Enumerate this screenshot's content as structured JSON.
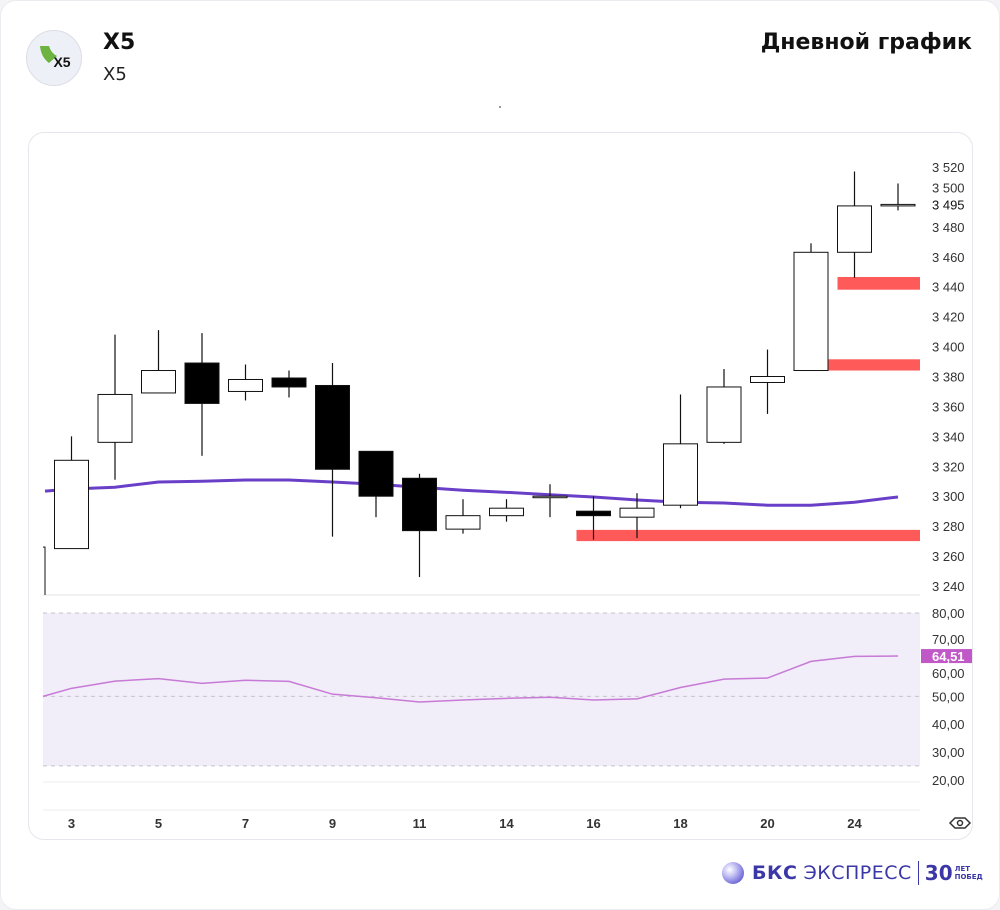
{
  "header": {
    "ticker": "X5",
    "name": "X5",
    "chart_title": "Дневной график",
    "logo_text": "X5"
  },
  "footer": {
    "brand_bold": "БКС",
    "brand_rest": "ЭКСПРЕСС",
    "anniv_num": "30",
    "anniv_line1": "ЛЕТ",
    "anniv_line2": "ПОБЕД"
  },
  "colors": {
    "ma": "#6a3fc8",
    "zone": "#ff5a5a",
    "rsi": "#c77ad6",
    "rsi_label": "#c158c8",
    "rsi_band": "#f1edf9"
  },
  "chart_data": [
    {
      "type": "candlestick",
      "x": [
        "2",
        "3",
        "4",
        "5",
        "6",
        "7",
        "8",
        "9",
        "10",
        "11",
        "13",
        "14",
        "15",
        "16",
        "17",
        "18",
        "19",
        "20",
        "23",
        "24",
        "25"
      ],
      "x_tick_labels": [
        "3",
        "5",
        "7",
        "9",
        "11",
        "14",
        "16",
        "18",
        "20",
        "24"
      ],
      "candles": [
        {
          "o": 3230,
          "h": 3266,
          "l": 3230,
          "c": 3266
        },
        {
          "o": 3265,
          "h": 3340,
          "l": 3265,
          "c": 3324
        },
        {
          "o": 3336,
          "h": 3408,
          "l": 3311,
          "c": 3368
        },
        {
          "o": 3369,
          "h": 3411,
          "l": 3369,
          "c": 3384
        },
        {
          "o": 3389,
          "h": 3409,
          "l": 3327,
          "c": 3362
        },
        {
          "o": 3370,
          "h": 3388,
          "l": 3364,
          "c": 3378
        },
        {
          "o": 3379,
          "h": 3384,
          "l": 3366,
          "c": 3373
        },
        {
          "o": 3374,
          "h": 3389,
          "l": 3273,
          "c": 3318
        },
        {
          "o": 3330,
          "h": 3330,
          "l": 3286,
          "c": 3300
        },
        {
          "o": 3312,
          "h": 3315,
          "l": 3246,
          "c": 3277
        },
        {
          "o": 3278,
          "h": 3298,
          "l": 3275,
          "c": 3287
        },
        {
          "o": 3287,
          "h": 3298,
          "l": 3283,
          "c": 3292
        },
        {
          "o": 3299,
          "h": 3308,
          "l": 3286,
          "c": 3300
        },
        {
          "o": 3290,
          "h": 3300,
          "l": 3271,
          "c": 3287
        },
        {
          "o": 3286,
          "h": 3302,
          "l": 3272,
          "c": 3292
        },
        {
          "o": 3294,
          "h": 3368,
          "l": 3292,
          "c": 3335
        },
        {
          "o": 3336,
          "h": 3385,
          "l": 3335,
          "c": 3373
        },
        {
          "o": 3376,
          "h": 3398,
          "l": 3355,
          "c": 3380
        },
        {
          "o": 3384,
          "h": 3469,
          "l": 3384,
          "c": 3463
        },
        {
          "o": 3463,
          "h": 3517,
          "l": 3446,
          "c": 3494
        },
        {
          "o": 3495,
          "h": 3509,
          "l": 3491,
          "c": 3495
        }
      ],
      "moving_average": [
        3303.4,
        3304.8,
        3306,
        3309.5,
        3310,
        3310.8,
        3310.8,
        3309.5,
        3308,
        3306,
        3304,
        3302.6,
        3301,
        3299.5,
        3297.5,
        3296,
        3295.5,
        3294,
        3294,
        3296,
        3299.5
      ],
      "zones": [
        {
          "from_index": 13,
          "low": 3270,
          "high": 3277.5
        },
        {
          "from_index": 18,
          "low": 3384,
          "high": 3391.5
        },
        {
          "from_index": 19,
          "low": 3438,
          "high": 3446.5
        }
      ],
      "y_ticks": [
        "3 240",
        "3 260",
        "3 280",
        "3 300",
        "3 320",
        "3 340",
        "3 360",
        "3 380",
        "3 400",
        "3 420",
        "3 440",
        "3 460",
        "3 480",
        "3 500",
        "3 520"
      ],
      "ylim": [
        3240,
        3520
      ],
      "last_price_label": "3 495",
      "last_price": 3495
    },
    {
      "type": "line",
      "values": [
        50,
        52.9,
        55.5,
        56.4,
        54.7,
        55.8,
        55.4,
        50.8,
        49.5,
        48,
        48.7,
        49.3,
        49.7,
        48.7,
        49.1,
        53.2,
        56.2,
        56.6,
        62.6,
        64.4,
        64.51
      ],
      "y_ticks": [
        "20,00",
        "30,00",
        "40,00",
        "50,00",
        "60,00",
        "70,00",
        "80,00"
      ],
      "ylim": [
        20,
        80
      ],
      "band": [
        25,
        80
      ],
      "midline": 50,
      "last_value_label": "64,51"
    }
  ],
  "icons": {
    "visibility": "eye-icon"
  }
}
